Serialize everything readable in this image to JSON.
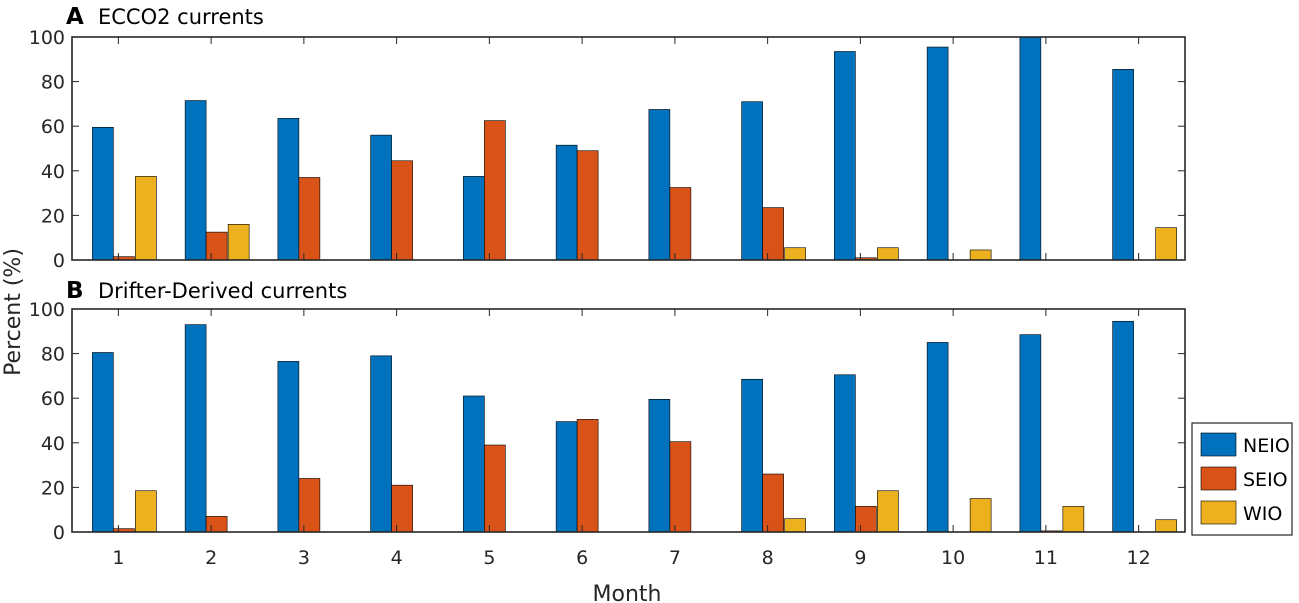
{
  "ylabel": "Percent (%)",
  "xlabel": "Month",
  "colors": {
    "NEIO": "#0072BD",
    "SEIO": "#D95319",
    "WIO": "#EDB120"
  },
  "legend": {
    "position": "right",
    "entries": [
      "NEIO",
      "SEIO",
      "WIO"
    ]
  },
  "chart_data": [
    {
      "type": "bar",
      "panel": "A",
      "title": "ECCO2 currents",
      "categories": [
        "1",
        "2",
        "3",
        "4",
        "5",
        "6",
        "7",
        "8",
        "9",
        "10",
        "11",
        "12"
      ],
      "ylim": [
        0,
        100
      ],
      "yticks": [
        0,
        20,
        40,
        60,
        80,
        100
      ],
      "xlabel": "",
      "ylabel": "Percent (%)",
      "series": [
        {
          "name": "NEIO",
          "values": [
            59.5,
            71.5,
            63.5,
            56,
            37.5,
            51.5,
            67.5,
            71,
            93.5,
            95.5,
            100,
            85.5
          ]
        },
        {
          "name": "SEIO",
          "values": [
            1.5,
            12.5,
            37,
            44.5,
            62.5,
            49,
            32.5,
            23.5,
            1,
            0,
            0,
            0
          ]
        },
        {
          "name": "WIO",
          "values": [
            37.5,
            16,
            0,
            0,
            0,
            0,
            0,
            5.5,
            5.5,
            4.5,
            0,
            14.5
          ]
        }
      ]
    },
    {
      "type": "bar",
      "panel": "B",
      "title": "Drifter-Derived currents",
      "categories": [
        "1",
        "2",
        "3",
        "4",
        "5",
        "6",
        "7",
        "8",
        "9",
        "10",
        "11",
        "12"
      ],
      "ylim": [
        0,
        100
      ],
      "yticks": [
        0,
        20,
        40,
        60,
        80,
        100
      ],
      "xlabel": "Month",
      "ylabel": "Percent (%)",
      "series": [
        {
          "name": "NEIO",
          "values": [
            80.5,
            93,
            76.5,
            79,
            61,
            49.5,
            59.5,
            68.5,
            70.5,
            85,
            88.5,
            94.5
          ]
        },
        {
          "name": "SEIO",
          "values": [
            1.5,
            7,
            24,
            21,
            39,
            50.5,
            40.5,
            26,
            11.5,
            0,
            0.5,
            0
          ]
        },
        {
          "name": "WIO",
          "values": [
            18.5,
            0,
            0,
            0,
            0,
            0,
            0,
            6,
            18.5,
            15,
            11.5,
            5.5
          ]
        }
      ]
    }
  ]
}
